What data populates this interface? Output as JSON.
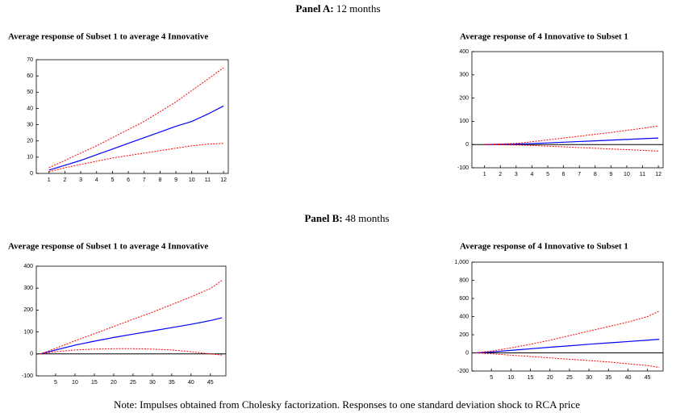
{
  "panels": [
    {
      "label": "Panel A:",
      "period": "12 months"
    },
    {
      "label": "Panel B:",
      "period": "48 months"
    }
  ],
  "note": "Note: Impulses obtained from Cholesky factorization. Responses to one standard deviation shock to RCA price",
  "chart_data": [
    {
      "type": "line",
      "title": "Average response of Subset 1 to average 4 Innovative",
      "x": [
        1,
        2,
        3,
        4,
        5,
        6,
        7,
        8,
        9,
        10,
        11,
        12
      ],
      "xlim": [
        0.2,
        12.3
      ],
      "xticks": [
        1,
        2,
        3,
        4,
        5,
        6,
        7,
        8,
        9,
        10,
        11,
        12
      ],
      "ylim": [
        0,
        70
      ],
      "yticks": [
        0,
        10,
        20,
        30,
        40,
        50,
        60,
        70
      ],
      "zero_line": false,
      "series": [
        {
          "color": "#0000ff",
          "style": "solid",
          "values": [
            2,
            5,
            8,
            11.5,
            15,
            18.5,
            22,
            25.5,
            29,
            32,
            36.5,
            41.5
          ]
        },
        {
          "color": "#ff0000",
          "style": "dashed",
          "values": [
            3.5,
            8,
            12.5,
            17,
            22,
            27,
            32,
            38,
            44,
            51,
            58,
            65
          ]
        },
        {
          "color": "#ff0000",
          "style": "dashed",
          "values": [
            1,
            3.5,
            5.5,
            7.5,
            9.5,
            11,
            12.5,
            14,
            15.5,
            17,
            18,
            18.5
          ]
        }
      ]
    },
    {
      "type": "line",
      "title": "Average response of 4 Innovative to Subset 1",
      "x": [
        1,
        2,
        3,
        4,
        5,
        6,
        7,
        8,
        9,
        10,
        11,
        12
      ],
      "xlim": [
        0.2,
        12.3
      ],
      "xticks": [
        1,
        2,
        3,
        4,
        5,
        6,
        7,
        8,
        9,
        10,
        11,
        12
      ],
      "ylim": [
        -100,
        400
      ],
      "yticks": [
        -100,
        0,
        100,
        200,
        300,
        400
      ],
      "zero_line": true,
      "series": [
        {
          "color": "#0000ff",
          "style": "solid",
          "values": [
            0,
            1,
            2,
            4,
            7,
            10,
            13,
            16,
            19,
            22,
            25,
            28
          ]
        },
        {
          "color": "#ff0000",
          "style": "dashed",
          "values": [
            0,
            2,
            5,
            12,
            20,
            28,
            36,
            44,
            52,
            61,
            70,
            80
          ]
        },
        {
          "color": "#ff0000",
          "style": "dashed",
          "values": [
            0,
            -1,
            -2,
            -4,
            -7,
            -10,
            -13,
            -16,
            -19,
            -22,
            -25,
            -28
          ]
        }
      ]
    },
    {
      "type": "line",
      "title": "Average response of Subset 1 to average 4 Innovative",
      "x": [
        1,
        5,
        10,
        15,
        20,
        25,
        30,
        35,
        40,
        45,
        48
      ],
      "xlim": [
        0,
        49
      ],
      "xticks": [
        5,
        10,
        15,
        20,
        25,
        30,
        35,
        40,
        45
      ],
      "ylim": [
        -100,
        400
      ],
      "yticks": [
        -100,
        0,
        100,
        200,
        300,
        400
      ],
      "zero_line": true,
      "series": [
        {
          "color": "#0000ff",
          "style": "solid",
          "values": [
            0,
            18,
            40,
            58,
            75,
            90,
            105,
            120,
            135,
            152,
            165
          ]
        },
        {
          "color": "#ff0000",
          "style": "dashed",
          "values": [
            0,
            25,
            60,
            92,
            125,
            158,
            190,
            225,
            260,
            298,
            335
          ]
        },
        {
          "color": "#ff0000",
          "style": "dashed",
          "values": [
            0,
            10,
            18,
            22,
            24,
            24,
            22,
            18,
            10,
            0,
            -5
          ]
        }
      ]
    },
    {
      "type": "line",
      "title": "Average response of 4 Innovative to Subset 1",
      "x": [
        1,
        5,
        10,
        15,
        20,
        25,
        30,
        35,
        40,
        45,
        48
      ],
      "xlim": [
        0,
        49
      ],
      "xticks": [
        5,
        10,
        15,
        20,
        25,
        30,
        35,
        40,
        45
      ],
      "ylim": [
        -200,
        1000
      ],
      "yticks": [
        -200,
        0,
        200,
        400,
        600,
        800,
        {
          "value": 1000,
          "label": "1,000"
        }
      ],
      "zero_line": true,
      "series": [
        {
          "color": "#0000ff",
          "style": "solid",
          "values": [
            0,
            10,
            28,
            45,
            62,
            78,
            95,
            110,
            125,
            140,
            150
          ]
        },
        {
          "color": "#ff0000",
          "style": "dashed",
          "values": [
            0,
            20,
            55,
            95,
            140,
            190,
            240,
            290,
            340,
            400,
            460
          ]
        },
        {
          "color": "#ff0000",
          "style": "dashed",
          "values": [
            0,
            -10,
            -25,
            -40,
            -55,
            -70,
            -85,
            -100,
            -120,
            -140,
            -160
          ]
        }
      ]
    }
  ]
}
